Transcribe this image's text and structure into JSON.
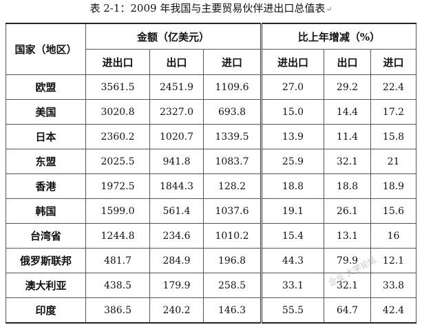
{
  "caption": {
    "text": "表 2-1：2009 年我国与主要贸易伙伴进出口总值表",
    "mark": "↵"
  },
  "table": {
    "header": {
      "region": "国家（地区）",
      "group_amount": "金额（亿美元）",
      "group_change": "比上年增减（%）",
      "cols": [
        "进出口",
        "出口",
        "进口",
        "进出口",
        "出口",
        "进口"
      ]
    },
    "rows": [
      {
        "region": "欧盟",
        "amount": [
          "3561.5",
          "2451.9",
          "1109.6"
        ],
        "change": [
          "27.0",
          "29.2",
          "22.4"
        ]
      },
      {
        "region": "美国",
        "amount": [
          "3020.8",
          "2327.0",
          "693.8"
        ],
        "change": [
          "15.0",
          "14.4",
          "17.2"
        ]
      },
      {
        "region": "日本",
        "amount": [
          "2360.2",
          "1020.7",
          "1339.5"
        ],
        "change": [
          "13.9",
          "11.4",
          "15.8"
        ]
      },
      {
        "region": "东盟",
        "amount": [
          "2025.5",
          "941.8",
          "1083.7"
        ],
        "change": [
          "25.9",
          "32.1",
          "21"
        ]
      },
      {
        "region": "香港",
        "amount": [
          "1972.5",
          "1844.3",
          "128.2"
        ],
        "change": [
          "18.8",
          "18.8",
          "18.9"
        ]
      },
      {
        "region": "韩国",
        "amount": [
          "1599.0",
          "561.4",
          "1037.6"
        ],
        "change": [
          "19.1",
          "26.1",
          "15.6"
        ]
      },
      {
        "region": "台湾省",
        "amount": [
          "1244.8",
          "234.6",
          "1010.2"
        ],
        "change": [
          "15.4",
          "13.1",
          "16"
        ]
      },
      {
        "region": "俄罗斯联邦",
        "amount": [
          "481.7",
          "284.9",
          "196.8"
        ],
        "change": [
          "44.3",
          "79.9",
          "12.1"
        ]
      },
      {
        "region": "澳大利亚",
        "amount": [
          "438.5",
          "179.9",
          "258.5"
        ],
        "change": [
          "33.1",
          "32.1",
          "33.8"
        ]
      },
      {
        "region": "印度",
        "amount": [
          "386.5",
          "240.2",
          "146.3"
        ],
        "change": [
          "55.5",
          "64.7",
          "42.4"
        ]
      }
    ]
  },
  "watermark": "企业 大学论坛"
}
